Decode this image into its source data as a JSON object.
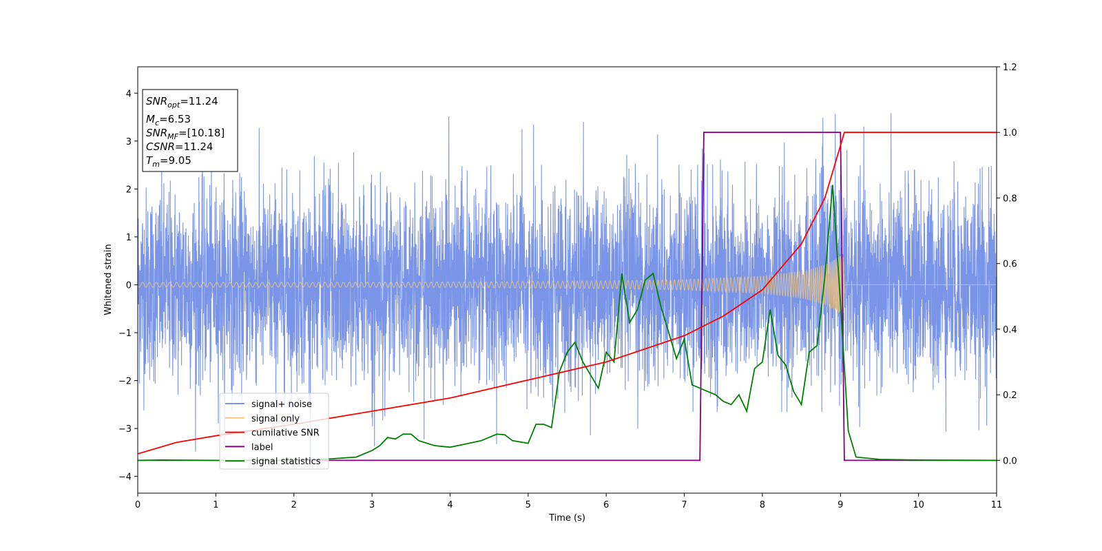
{
  "chart_data": {
    "type": "line",
    "xlabel": "Time (s)",
    "ylabel": "Whitened strain",
    "xlim": [
      0,
      11
    ],
    "ylim": [
      -4.35,
      4.55
    ],
    "y2lim": [
      -0.1,
      1.2
    ],
    "xticks": [
      0,
      1,
      2,
      3,
      4,
      5,
      6,
      7,
      8,
      9,
      10,
      11
    ],
    "yticks": [
      -4,
      -3,
      -2,
      -1,
      0,
      1,
      2,
      3,
      4
    ],
    "y2ticks": [
      "0.0",
      "0.2",
      "0.4",
      "0.6",
      "0.8",
      "1.0",
      "1.2"
    ],
    "grid": false,
    "legend_placement": "lower-left",
    "legend": [
      {
        "label": "signal+ noise",
        "color": "#7a95e8"
      },
      {
        "label": "signal only",
        "color": "#f5c77a"
      },
      {
        "label": "cumilative SNR",
        "color": "#ff0000"
      },
      {
        "label": "label",
        "color": "#800080"
      },
      {
        "label": "signal statistics",
        "color": "#008000"
      }
    ],
    "stats_box": {
      "lines": [
        {
          "symbol": "SNR",
          "sub": "opt",
          "value": "=11.24"
        },
        {
          "symbol": "M",
          "sub": "c",
          "value": "=6.53"
        },
        {
          "symbol": "SNR",
          "sub": "MF",
          "value": "=[10.18]"
        },
        {
          "symbol": "CSNR",
          "sub": "",
          "value": "=11.24"
        },
        {
          "symbol": "T",
          "sub": "m",
          "value": "=9.05"
        }
      ]
    },
    "series": [
      {
        "name": "signal+ noise",
        "axis": "left",
        "color": "#7a95e8",
        "kind": "noise",
        "t_range": [
          0,
          11
        ],
        "amplitude_band": [
          -3.9,
          3.7
        ],
        "typical_std": 1.0
      },
      {
        "name": "signal only",
        "axis": "left",
        "color": "#f5c77a",
        "kind": "chirp",
        "merger_time": 9.05,
        "envelope": {
          "t": [
            0,
            2,
            4,
            6,
            7,
            8,
            8.5,
            8.8,
            9.0,
            9.05
          ],
          "amp": [
            0.05,
            0.05,
            0.06,
            0.08,
            0.11,
            0.18,
            0.28,
            0.42,
            0.6,
            0.6
          ]
        }
      },
      {
        "name": "cumilative SNR",
        "axis": "right",
        "color": "#ff0000",
        "x": [
          0,
          0.5,
          1,
          2,
          3,
          4,
          5,
          6,
          7,
          7.5,
          8,
          8.5,
          8.8,
          9.0,
          9.05,
          11
        ],
        "y": [
          0.02,
          0.055,
          0.075,
          0.11,
          0.15,
          0.19,
          0.245,
          0.3,
          0.38,
          0.44,
          0.52,
          0.66,
          0.8,
          0.96,
          1.0,
          1.0
        ]
      },
      {
        "name": "label",
        "axis": "right",
        "color": "#800080",
        "x": [
          0,
          7.2,
          7.25,
          9.0,
          9.05,
          11
        ],
        "y": [
          0,
          0,
          1,
          1,
          0,
          0
        ]
      },
      {
        "name": "signal statistics",
        "axis": "right",
        "color": "#008000",
        "x": [
          0,
          0.3,
          1,
          2,
          2.5,
          2.8,
          3.0,
          3.1,
          3.2,
          3.3,
          3.4,
          3.5,
          3.6,
          3.8,
          4.0,
          4.2,
          4.4,
          4.6,
          4.7,
          4.8,
          5.0,
          5.1,
          5.2,
          5.3,
          5.4,
          5.5,
          5.6,
          5.7,
          5.8,
          5.9,
          6.0,
          6.1,
          6.2,
          6.3,
          6.4,
          6.5,
          6.6,
          6.7,
          6.8,
          6.9,
          7.0,
          7.1,
          7.2,
          7.3,
          7.4,
          7.5,
          7.6,
          7.7,
          7.8,
          7.9,
          8.0,
          8.1,
          8.2,
          8.3,
          8.4,
          8.5,
          8.6,
          8.7,
          8.8,
          8.9,
          9.0,
          9.1,
          9.2,
          9.5,
          10,
          11
        ],
        "y": [
          0.0,
          0.001,
          0.0,
          0.0,
          0.005,
          0.01,
          0.03,
          0.045,
          0.07,
          0.065,
          0.08,
          0.08,
          0.06,
          0.045,
          0.04,
          0.05,
          0.06,
          0.08,
          0.078,
          0.06,
          0.052,
          0.11,
          0.11,
          0.1,
          0.27,
          0.33,
          0.36,
          0.3,
          0.26,
          0.22,
          0.33,
          0.3,
          0.57,
          0.42,
          0.46,
          0.55,
          0.57,
          0.47,
          0.39,
          0.31,
          0.37,
          0.23,
          0.22,
          0.21,
          0.2,
          0.18,
          0.17,
          0.2,
          0.15,
          0.28,
          0.3,
          0.46,
          0.32,
          0.29,
          0.21,
          0.17,
          0.33,
          0.35,
          0.56,
          0.84,
          0.48,
          0.09,
          0.01,
          0.003,
          0.001,
          0.0
        ]
      }
    ]
  }
}
